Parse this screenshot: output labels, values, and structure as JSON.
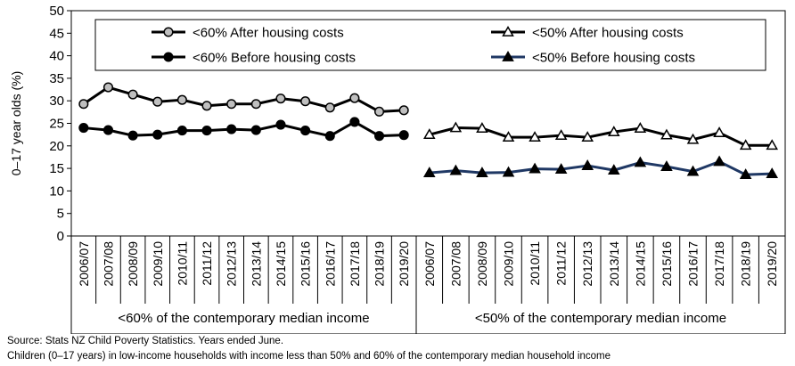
{
  "chart_data": {
    "type": "line",
    "ylabel": "0–17 year olds (%)",
    "ylim": [
      0,
      50
    ],
    "y_ticks": [
      0,
      5,
      10,
      15,
      20,
      25,
      30,
      35,
      40,
      45,
      50
    ],
    "grid": false,
    "legend_position": "top",
    "categories": [
      "2006/07",
      "2007/08",
      "2008/09",
      "2009/10",
      "2010/11",
      "2011/12",
      "2012/13",
      "2013/14",
      "2014/15",
      "2015/16",
      "2016/17",
      "2017/18",
      "2018/19",
      "2019/20"
    ],
    "groups": [
      {
        "label": "<60% of the contemporary median income",
        "series": [
          {
            "name": "<60% After housing costs",
            "marker": "circle",
            "fill": "#bfbfbf",
            "line": "#000000",
            "values": [
              29.3,
              33.0,
              31.4,
              29.8,
              30.2,
              28.9,
              29.3,
              29.3,
              30.5,
              29.9,
              28.5,
              30.6,
              27.6,
              27.9
            ]
          },
          {
            "name": "<60% Before housing costs",
            "marker": "circle",
            "fill": "#000000",
            "line": "#000000",
            "values": [
              24.0,
              23.5,
              22.3,
              22.5,
              23.4,
              23.4,
              23.7,
              23.5,
              24.7,
              23.4,
              22.2,
              25.3,
              22.2,
              22.4
            ]
          }
        ]
      },
      {
        "label": "<50% of the contemporary median income",
        "series": [
          {
            "name": "<50% After housing costs",
            "marker": "triangle",
            "fill": "#ffffff",
            "line": "#000000",
            "values": [
              22.5,
              24.0,
              23.9,
              21.9,
              21.9,
              22.3,
              21.9,
              23.1,
              23.9,
              22.4,
              21.4,
              22.9,
              20.1,
              20.1
            ]
          },
          {
            "name": "<50% Before housing costs",
            "marker": "triangle",
            "fill": "#000000",
            "line": "#1f3864",
            "values": [
              14.0,
              14.5,
              14.0,
              14.1,
              14.9,
              14.8,
              15.6,
              14.6,
              16.3,
              15.4,
              14.3,
              16.5,
              13.6,
              13.8
            ]
          }
        ]
      }
    ]
  },
  "footnotes": {
    "source": "Source: Stats NZ Child Poverty Statistics. Years ended June.",
    "note": "Children (0–17 years) in low-income households with income less than 50% and 60% of the contemporary median household income"
  }
}
